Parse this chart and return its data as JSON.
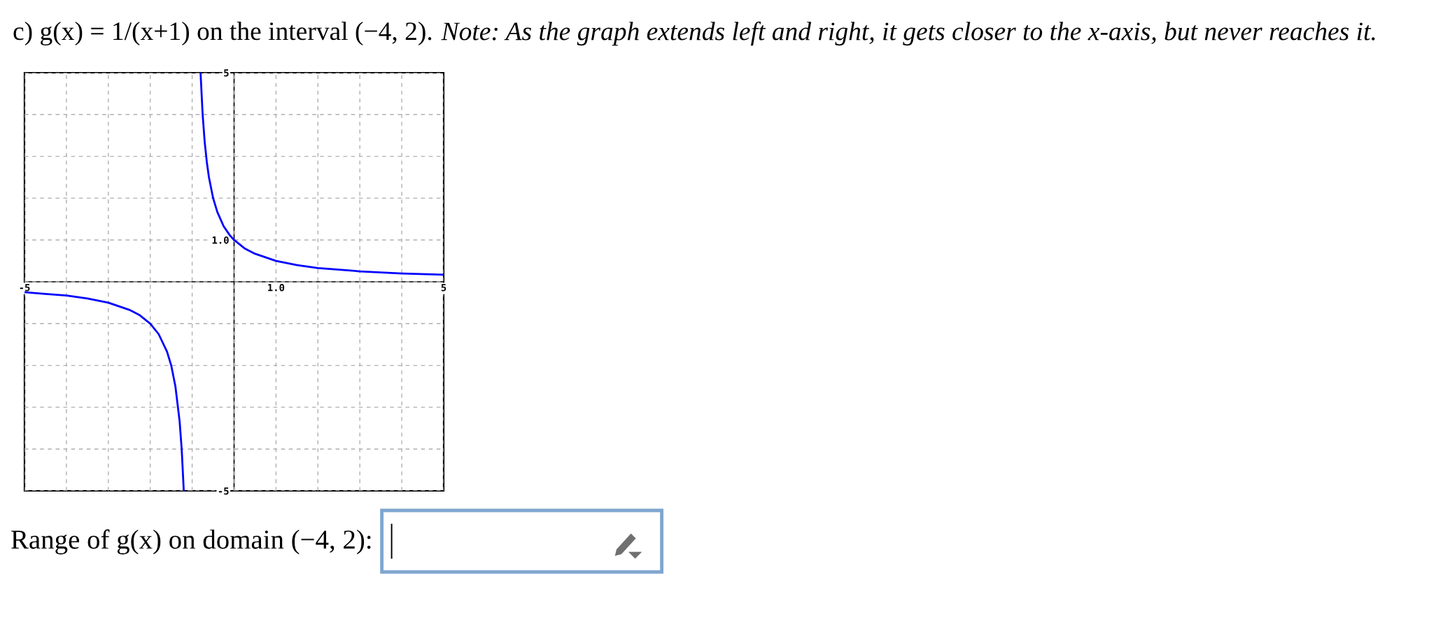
{
  "chart_data": {
    "type": "line",
    "title": "c) g(x) = 1/(x+1) on the interval (−4, 2).",
    "subtitle": "Note: As the graph extends left and right, it gets closer to the x-axis, but never reaches it.",
    "annotations": [
      "Range of g(x) on domain (−4, 2):"
    ],
    "xlim": [
      -5,
      5
    ],
    "ylim": [
      -5,
      5
    ],
    "xticks": [
      {
        "value": -5,
        "label": "-5"
      },
      {
        "value": -4,
        "label": null
      },
      {
        "value": -3,
        "label": null
      },
      {
        "value": -2,
        "label": null
      },
      {
        "value": -1,
        "label": null
      },
      {
        "value": 0,
        "label": null
      },
      {
        "value": 1,
        "label": "1.0"
      },
      {
        "value": 2,
        "label": null
      },
      {
        "value": 3,
        "label": null
      },
      {
        "value": 4,
        "label": null
      },
      {
        "value": 5,
        "label": "5"
      }
    ],
    "yticks": [
      {
        "value": -5,
        "label": "-5"
      },
      {
        "value": -4,
        "label": null
      },
      {
        "value": -3,
        "label": null
      },
      {
        "value": -2,
        "label": null
      },
      {
        "value": -1,
        "label": null
      },
      {
        "value": 0,
        "label": null
      },
      {
        "value": 1,
        "label": "1.0"
      },
      {
        "value": 2,
        "label": null
      },
      {
        "value": 3,
        "label": null
      },
      {
        "value": 4,
        "label": null
      },
      {
        "value": 5,
        "label": "5"
      }
    ],
    "grid": true,
    "line_style": "solid",
    "series": [
      {
        "color": "#0000ff",
        "x": [
          -5,
          -4.5,
          -4,
          -3.5,
          -3,
          -2.5,
          -2.25,
          -2,
          -1.8,
          -1.6,
          -1.5,
          -1.4,
          -1.3,
          -1.25,
          -1.2
        ],
        "values": [
          -0.25,
          -0.29,
          -0.33,
          -0.4,
          -0.5,
          -0.67,
          -0.8,
          -1,
          -1.25,
          -1.67,
          -2,
          -2.5,
          -3.33,
          -4,
          -5
        ]
      },
      {
        "color": "#0000ff",
        "x": [
          -0.8,
          -0.75,
          -0.7,
          -0.65,
          -0.6,
          -0.5,
          -0.4,
          -0.25,
          -0.1,
          0,
          0.25,
          0.5,
          1,
          1.5,
          2,
          2.5,
          3,
          4,
          5
        ],
        "values": [
          5,
          4,
          3.33,
          2.86,
          2.5,
          2,
          1.67,
          1.33,
          1.11,
          1,
          0.8,
          0.67,
          0.5,
          0.4,
          0.33,
          0.29,
          0.25,
          0.2,
          0.17
        ]
      }
    ]
  }
}
